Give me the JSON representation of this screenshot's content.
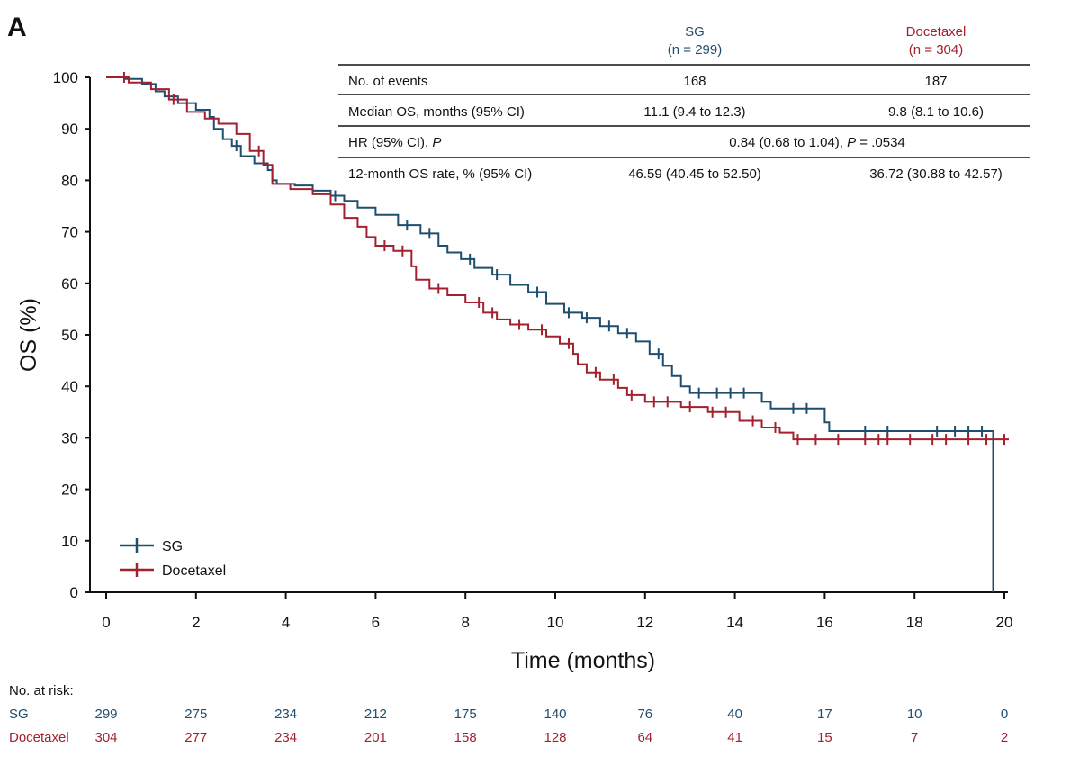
{
  "panel_label": "A",
  "colors": {
    "sg": "#1f4e6e",
    "docetaxel": "#a3202e",
    "axis": "#111111"
  },
  "summary_table": {
    "columns": [
      {
        "name": "SG",
        "n": "(n = 299)",
        "color": "#1f4e6e"
      },
      {
        "name": "Docetaxel",
        "n": "(n = 304)",
        "color": "#a3202e"
      }
    ],
    "rows": [
      {
        "label": "No. of events",
        "sg": "168",
        "docetaxel": "187"
      },
      {
        "label": "Median OS, months (95% CI)",
        "sg": "11.1 (9.4 to 12.3)",
        "docetaxel": "9.8 (8.1 to 10.6)"
      },
      {
        "label_prefix": "HR (95% CI), ",
        "label_italic": "P",
        "span_prefix": "0.84 (0.68 to 1.04), ",
        "span_italic": "P",
        "span_suffix": " = .0534"
      },
      {
        "label": "12-month OS rate, % (95% CI)",
        "sg": "46.59 (40.45 to 52.50)",
        "docetaxel": "36.72 (30.88 to 42.57)"
      }
    ]
  },
  "chart_data": {
    "type": "line",
    "subtype": "kaplan-meier",
    "title": "",
    "xlabel": "Time (months)",
    "ylabel": "OS (%)",
    "xlim": [
      0,
      20
    ],
    "ylim": [
      0,
      100
    ],
    "xticks": [
      0,
      2,
      4,
      6,
      8,
      10,
      12,
      14,
      16,
      18,
      20
    ],
    "yticks": [
      0,
      10,
      20,
      30,
      40,
      50,
      60,
      70,
      80,
      90,
      100
    ],
    "grid": false,
    "legend_position": "bottom-left",
    "series": [
      {
        "name": "SG",
        "color": "#1f4e6e",
        "points": [
          [
            0,
            100
          ],
          [
            0.4,
            99.7
          ],
          [
            0.8,
            98.7
          ],
          [
            1.1,
            97.3
          ],
          [
            1.3,
            96.3
          ],
          [
            1.6,
            95
          ],
          [
            2.0,
            93.7
          ],
          [
            2.3,
            92.3
          ],
          [
            2.4,
            90
          ],
          [
            2.6,
            88
          ],
          [
            2.8,
            86.7
          ],
          [
            3.0,
            84.7
          ],
          [
            3.3,
            83.3
          ],
          [
            3.6,
            82
          ],
          [
            3.7,
            80
          ],
          [
            3.8,
            79.3
          ],
          [
            4.2,
            79
          ],
          [
            4.6,
            78
          ],
          [
            5.0,
            77
          ],
          [
            5.3,
            76
          ],
          [
            5.6,
            74.7
          ],
          [
            6.0,
            73.3
          ],
          [
            6.5,
            71.3
          ],
          [
            7.0,
            69.7
          ],
          [
            7.4,
            67.3
          ],
          [
            7.6,
            66
          ],
          [
            7.9,
            64.7
          ],
          [
            8.2,
            63
          ],
          [
            8.6,
            61.7
          ],
          [
            9.0,
            59.7
          ],
          [
            9.4,
            58.3
          ],
          [
            9.8,
            56
          ],
          [
            10.2,
            54.3
          ],
          [
            10.6,
            53.3
          ],
          [
            11.0,
            51.7
          ],
          [
            11.4,
            50.3
          ],
          [
            11.8,
            48.7
          ],
          [
            12.1,
            46.3
          ],
          [
            12.4,
            44
          ],
          [
            12.6,
            42
          ],
          [
            12.8,
            40
          ],
          [
            13.0,
            38.7
          ],
          [
            14.3,
            38.7
          ],
          [
            14.6,
            37
          ],
          [
            14.8,
            35.7
          ],
          [
            15.2,
            35.7
          ],
          [
            15.8,
            35.7
          ],
          [
            16.0,
            33
          ],
          [
            16.1,
            31.3
          ],
          [
            19.7,
            31.3
          ],
          [
            19.75,
            0
          ]
        ],
        "censor_x": [
          2.9,
          5.1,
          6.7,
          7.2,
          8.1,
          8.7,
          9.6,
          10.3,
          10.7,
          11.2,
          11.6,
          12.3,
          13.2,
          13.6,
          13.9,
          14.2,
          15.3,
          15.6,
          16.9,
          17.4,
          18.5,
          18.9,
          19.2,
          19.5
        ]
      },
      {
        "name": "Docetaxel",
        "color": "#a3202e",
        "points": [
          [
            0,
            100
          ],
          [
            0.5,
            99
          ],
          [
            1.0,
            97.7
          ],
          [
            1.4,
            95.7
          ],
          [
            1.8,
            93.3
          ],
          [
            2.2,
            92
          ],
          [
            2.5,
            91
          ],
          [
            2.9,
            89
          ],
          [
            3.2,
            85.7
          ],
          [
            3.5,
            83
          ],
          [
            3.7,
            79.3
          ],
          [
            4.1,
            78.3
          ],
          [
            4.6,
            77.3
          ],
          [
            5.0,
            75.3
          ],
          [
            5.3,
            72.7
          ],
          [
            5.6,
            71
          ],
          [
            5.8,
            69
          ],
          [
            6.0,
            67.3
          ],
          [
            6.4,
            66.3
          ],
          [
            6.8,
            63.3
          ],
          [
            6.9,
            60.7
          ],
          [
            7.2,
            59
          ],
          [
            7.6,
            57.7
          ],
          [
            8.0,
            56.3
          ],
          [
            8.4,
            54.3
          ],
          [
            8.7,
            53
          ],
          [
            9.0,
            52
          ],
          [
            9.4,
            51
          ],
          [
            9.8,
            49.7
          ],
          [
            10.1,
            48.3
          ],
          [
            10.4,
            46.3
          ],
          [
            10.5,
            44.3
          ],
          [
            10.7,
            42.7
          ],
          [
            11.0,
            41.3
          ],
          [
            11.4,
            39.7
          ],
          [
            11.6,
            38.3
          ],
          [
            12.0,
            37
          ],
          [
            12.8,
            36
          ],
          [
            13.4,
            35
          ],
          [
            14.1,
            33.3
          ],
          [
            14.6,
            32
          ],
          [
            15.0,
            31
          ],
          [
            15.3,
            29.7
          ],
          [
            20.1,
            29.7
          ]
        ],
        "censor_x": [
          0.4,
          1.5,
          3.4,
          6.2,
          6.6,
          7.4,
          8.3,
          8.6,
          9.2,
          9.7,
          10.3,
          10.9,
          11.3,
          11.7,
          12.2,
          12.5,
          13.0,
          13.5,
          13.8,
          14.4,
          14.9,
          15.4,
          15.8,
          16.3,
          16.9,
          17.2,
          17.4,
          17.9,
          18.4,
          18.7,
          19.2,
          19.6,
          20.0
        ]
      }
    ],
    "risk_table": {
      "title": "No. at risk:",
      "times": [
        0,
        2,
        4,
        6,
        8,
        10,
        12,
        14,
        16,
        18,
        20
      ],
      "rows": [
        {
          "name": "SG",
          "color": "#1f4e6e",
          "values": [
            "299",
            "275",
            "234",
            "212",
            "175",
            "140",
            "76",
            "40",
            "17",
            "10",
            "0"
          ]
        },
        {
          "name": "Docetaxel",
          "color": "#a3202e",
          "values": [
            "304",
            "277",
            "234",
            "201",
            "158",
            "128",
            "64",
            "41",
            "15",
            "7",
            "2"
          ]
        }
      ]
    }
  }
}
